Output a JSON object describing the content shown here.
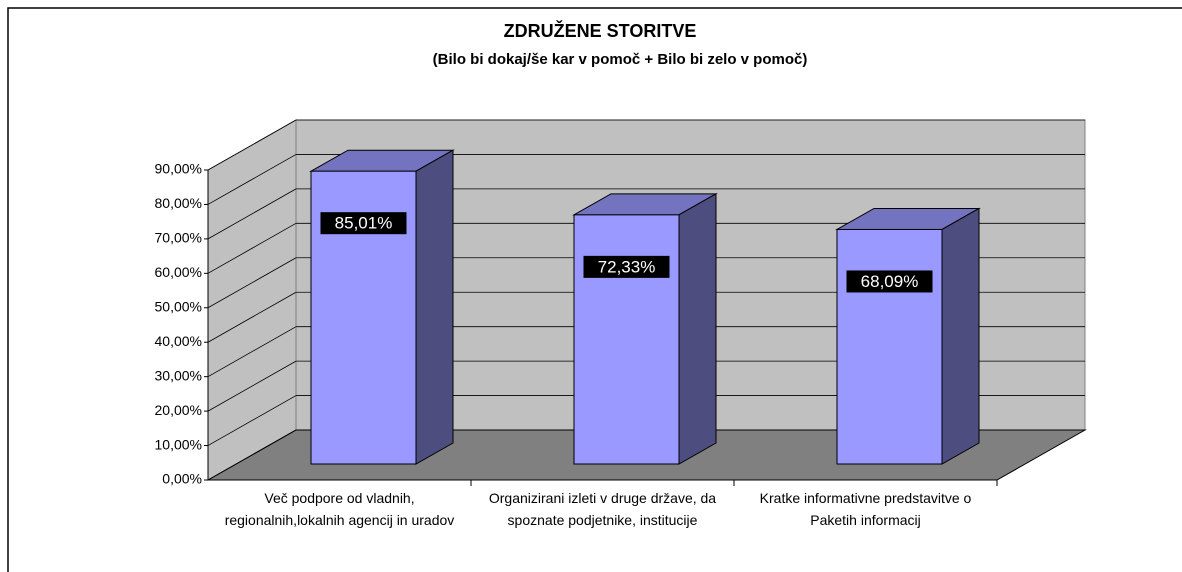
{
  "chart_data": {
    "type": "bar3d",
    "title": "ZDRUŽENE STORITVE",
    "subtitle": "(Bilo bi dokaj/še kar v pomoč + Bilo bi zelo v pomoč)",
    "categories": [
      "Več podpore od vladnih, regionalnih,lokalnih agencij in uradov",
      "Organizirani izleti v druge države, da spoznate podjetnike, institucije",
      "Kratke informativne predstavitve o Paketih informacij"
    ],
    "values": [
      85.01,
      72.33,
      68.09
    ],
    "value_labels": [
      "85,01%",
      "72,33%",
      "68,09%"
    ],
    "color": "#9999ff",
    "ylim": [
      0,
      90
    ],
    "yticks": [
      {
        "value": 0,
        "label": "0,00%"
      },
      {
        "value": 10,
        "label": "10,00%"
      },
      {
        "value": 20,
        "label": "20,00%"
      },
      {
        "value": 30,
        "label": "30,00%"
      },
      {
        "value": 40,
        "label": "40,00%"
      },
      {
        "value": 50,
        "label": "50,00%"
      },
      {
        "value": 60,
        "label": "60,00%"
      },
      {
        "value": 70,
        "label": "70,00%"
      },
      {
        "value": 80,
        "label": "80,00%"
      },
      {
        "value": 90,
        "label": "90,00%"
      }
    ],
    "grid": true
  }
}
